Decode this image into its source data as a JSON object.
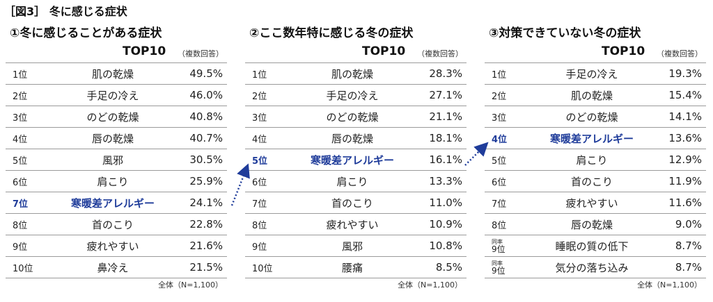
{
  "figure_title": "［図3］ 冬に感じる症状",
  "top_label": "TOP10",
  "multi_label": "（複数回答）",
  "note": "全体（N=1,100）",
  "highlight_color": "#1f3c9a",
  "chart_data": [
    {
      "type": "table",
      "title": "①冬に感じることがある症状",
      "rows": [
        {
          "rank": "1位",
          "symptom": "肌の乾燥",
          "value": 49.5,
          "label": "49.5%"
        },
        {
          "rank": "2位",
          "symptom": "手足の冷え",
          "value": 46.0,
          "label": "46.0%"
        },
        {
          "rank": "3位",
          "symptom": "のどの乾燥",
          "value": 40.8,
          "label": "40.8%"
        },
        {
          "rank": "4位",
          "symptom": "唇の乾燥",
          "value": 40.7,
          "label": "40.7%"
        },
        {
          "rank": "5位",
          "symptom": "風邪",
          "value": 30.5,
          "label": "30.5%"
        },
        {
          "rank": "6位",
          "symptom": "肩こり",
          "value": 25.9,
          "label": "25.9%"
        },
        {
          "rank": "7位",
          "symptom": "寒暖差アレルギー",
          "value": 24.1,
          "label": "24.1%",
          "highlight": true
        },
        {
          "rank": "8位",
          "symptom": "首のこり",
          "value": 22.8,
          "label": "22.8%"
        },
        {
          "rank": "9位",
          "symptom": "疲れやすい",
          "value": 21.6,
          "label": "21.6%"
        },
        {
          "rank": "10位",
          "symptom": "鼻冷え",
          "value": 21.5,
          "label": "21.5%"
        }
      ]
    },
    {
      "type": "table",
      "title": "②ここ数年特に感じる冬の症状",
      "rows": [
        {
          "rank": "1位",
          "symptom": "肌の乾燥",
          "value": 28.3,
          "label": "28.3%"
        },
        {
          "rank": "2位",
          "symptom": "手足の冷え",
          "value": 27.1,
          "label": "27.1%"
        },
        {
          "rank": "3位",
          "symptom": "のどの乾燥",
          "value": 21.1,
          "label": "21.1%"
        },
        {
          "rank": "4位",
          "symptom": "唇の乾燥",
          "value": 18.1,
          "label": "18.1%"
        },
        {
          "rank": "5位",
          "symptom": "寒暖差アレルギー",
          "value": 16.1,
          "label": "16.1%",
          "highlight": true
        },
        {
          "rank": "6位",
          "symptom": "肩こり",
          "value": 13.3,
          "label": "13.3%"
        },
        {
          "rank": "7位",
          "symptom": "首のこり",
          "value": 11.0,
          "label": "11.0%"
        },
        {
          "rank": "8位",
          "symptom": "疲れやすい",
          "value": 10.9,
          "label": "10.9%"
        },
        {
          "rank": "9位",
          "symptom": "風邪",
          "value": 10.8,
          "label": "10.8%"
        },
        {
          "rank": "10位",
          "symptom": "腰痛",
          "value": 8.5,
          "label": "8.5%"
        }
      ]
    },
    {
      "type": "table",
      "title": "③対策できていない冬の症状",
      "rows": [
        {
          "rank": "1位",
          "symptom": "手足の冷え",
          "value": 19.3,
          "label": "19.3%"
        },
        {
          "rank": "2位",
          "symptom": "肌の乾燥",
          "value": 15.4,
          "label": "15.4%"
        },
        {
          "rank": "3位",
          "symptom": "のどの乾燥",
          "value": 14.1,
          "label": "14.1%"
        },
        {
          "rank": "4位",
          "symptom": "寒暖差アレルギー",
          "value": 13.6,
          "label": "13.6%",
          "highlight": true
        },
        {
          "rank": "5位",
          "symptom": "肩こり",
          "value": 12.9,
          "label": "12.9%"
        },
        {
          "rank": "6位",
          "symptom": "首のこり",
          "value": 11.9,
          "label": "11.9%"
        },
        {
          "rank": "7位",
          "symptom": "疲れやすい",
          "value": 11.6,
          "label": "11.6%"
        },
        {
          "rank": "8位",
          "symptom": "唇の乾燥",
          "value": 9.0,
          "label": "9.0%"
        },
        {
          "rank": "9位",
          "tie": "同率",
          "symptom": "睡眠の質の低下",
          "value": 8.7,
          "label": "8.7%"
        },
        {
          "rank": "9位",
          "tie": "同率",
          "symptom": "気分の落ち込み",
          "value": 8.7,
          "label": "8.7%"
        }
      ]
    }
  ]
}
